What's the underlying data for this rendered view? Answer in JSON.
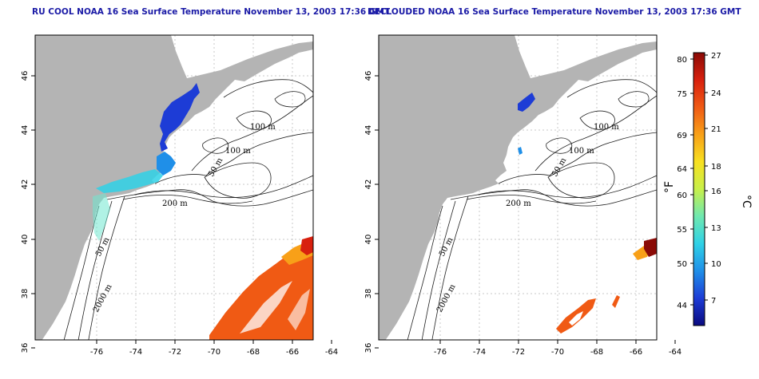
{
  "left_map": {
    "title": "RU COOL NOAA 16 Sea Surface Temperature November 13, 2003 17:36 GMT",
    "contour_labels": [
      "100 m",
      "100 m",
      "50 m",
      "200 m",
      "50 m",
      "2000 m"
    ]
  },
  "right_map": {
    "title": "DECLOUDED NOAA 16 Sea Surface Temperature November 13, 2003 17:36 GMT",
    "contour_labels": [
      "100 m",
      "100 m",
      "50 m",
      "200 m",
      "50 m",
      "2000 m"
    ]
  },
  "axes": {
    "x_ticks": [
      "-76",
      "-74",
      "-72",
      "-70",
      "-68",
      "-66",
      "-64"
    ],
    "y_ticks": [
      "36",
      "38",
      "40",
      "42",
      "44",
      "46"
    ]
  },
  "colorbar": {
    "fahrenheit_label": "°F",
    "celsius_label": "°C",
    "fahrenheit_ticks": [
      "80",
      "75",
      "69",
      "64",
      "60",
      "55",
      "50",
      "44"
    ],
    "celsius_ticks": [
      "27",
      "24",
      "21",
      "18",
      "16",
      "13",
      "10",
      "7"
    ],
    "colors": [
      "#0a0a80",
      "#1d3cd6",
      "#1f8fe8",
      "#2fd1e6",
      "#6fe8b0",
      "#c8f04a",
      "#f8e020",
      "#f8a018",
      "#f05a14",
      "#d8200e",
      "#8a0a06"
    ]
  },
  "colors": {
    "land": "#b4b4b4",
    "contour": "#202020",
    "grid": "#c8c8c8"
  }
}
